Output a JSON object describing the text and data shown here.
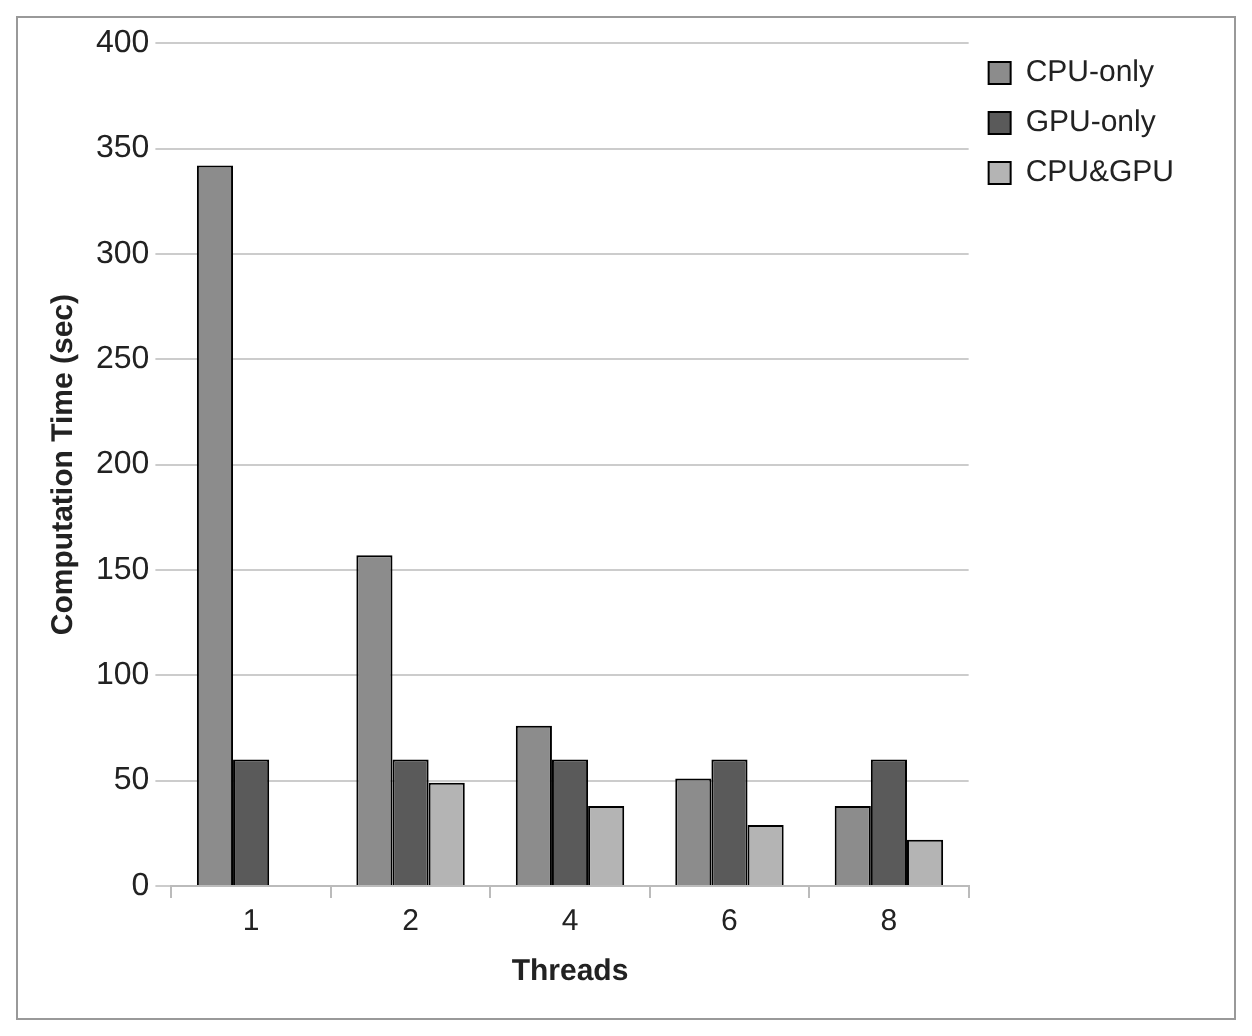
{
  "chart_data": {
    "type": "bar",
    "xlabel": "Threads",
    "ylabel": "Computation Time (sec)",
    "categories": [
      "1",
      "2",
      "4",
      "6",
      "8"
    ],
    "series": [
      {
        "name": "CPU-only",
        "color": "#8c8c8c",
        "values": [
          342,
          157,
          76,
          51,
          38
        ]
      },
      {
        "name": "GPU-only",
        "color": "#5a5a5a",
        "values": [
          60,
          60,
          60,
          60,
          60
        ]
      },
      {
        "name": "CPU&GPU",
        "color": "#b4b4b4",
        "values": [
          null,
          49,
          38,
          29,
          22
        ]
      }
    ],
    "ylim": [
      0,
      400
    ],
    "yticks": [
      0,
      50,
      100,
      150,
      200,
      250,
      300,
      350,
      400
    ],
    "grid": "y",
    "legend": "top right"
  }
}
